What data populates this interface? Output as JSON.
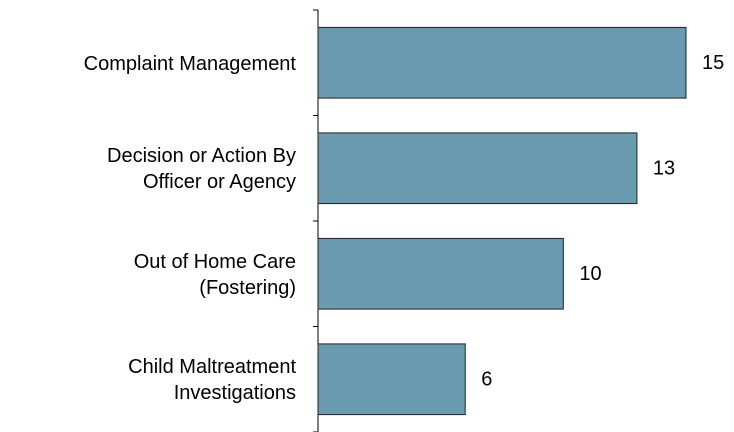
{
  "chart_data": {
    "type": "barh",
    "categories": [
      "Complaint Management",
      "Decision or Action By\nOfficer or Agency",
      "Out of Home Care\n(Fostering)",
      "Child Maltreatment\nInvestigations"
    ],
    "values": [
      15,
      13,
      10,
      6
    ],
    "color": "#6a9aaf"
  }
}
